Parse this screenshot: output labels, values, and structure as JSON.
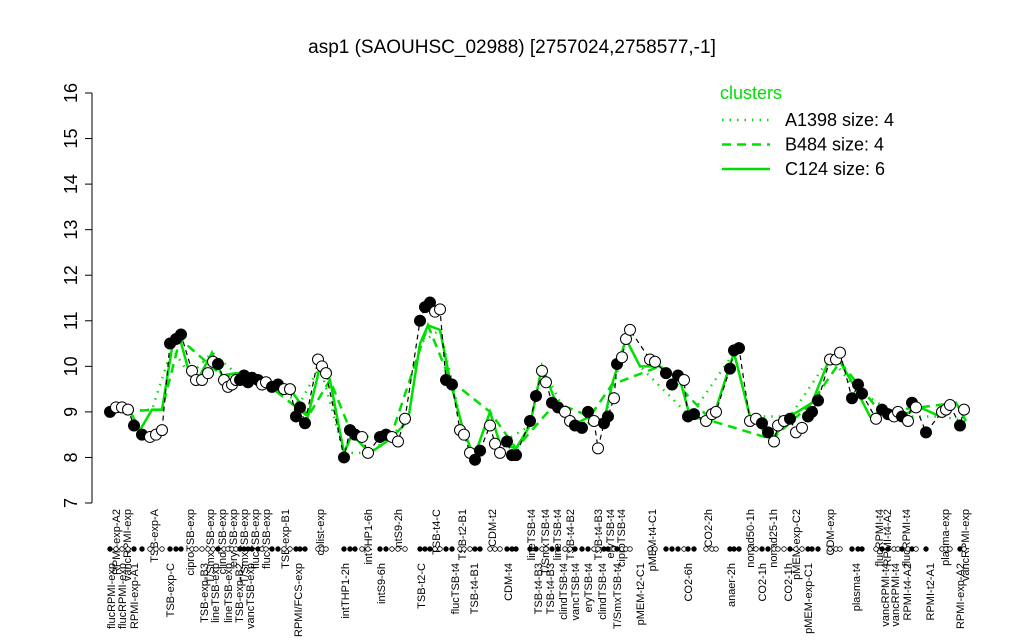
{
  "chart_data": {
    "type": "line",
    "title": "asp1 (SAOUHSC_02988) [2757024,2758577,-1]",
    "ylim": [
      7,
      16
    ],
    "yticks": [
      7,
      8,
      9,
      10,
      11,
      12,
      13,
      14,
      15,
      16
    ],
    "xlim": [
      0,
      880
    ],
    "xticks": [
      {
        "value": 16,
        "label": "flucRPMI-exp"
      },
      {
        "value": 27,
        "label": "flucRPMI-exp"
      },
      {
        "value": 39,
        "label": "RPMI-exp-A1"
      },
      {
        "value": 75,
        "label": "TSB-exp-C"
      },
      {
        "value": 109,
        "label": "TSB-exp-B3"
      },
      {
        "value": 120,
        "label": "lineTSB-exp"
      },
      {
        "value": 133,
        "label": "lineTSB-exp"
      },
      {
        "value": 144,
        "label": "TSB-exp-B2"
      },
      {
        "value": 155,
        "label": "vancTSB-exp"
      },
      {
        "value": 203,
        "label": "RPMI/FCS-exp"
      },
      {
        "value": 250,
        "label": "intTHP1-2h"
      },
      {
        "value": 286,
        "label": "intS9-6h"
      },
      {
        "value": 326,
        "label": "TSB-t2-C"
      },
      {
        "value": 360,
        "label": "flucTSB-t4"
      },
      {
        "value": 379,
        "label": "TSB-t4-B1"
      },
      {
        "value": 413,
        "label": "CDM-t4"
      },
      {
        "value": 443,
        "label": "TSB-t4-B3"
      },
      {
        "value": 455,
        "label": "TSB-t4-B3"
      },
      {
        "value": 468,
        "label": "clindTSB-t4"
      },
      {
        "value": 480,
        "label": "vancTSB-t4"
      },
      {
        "value": 493,
        "label": "eryTSB-t4"
      },
      {
        "value": 507,
        "label": "clindTSB-t4"
      },
      {
        "value": 522,
        "label": "T/SmxTSB-t4"
      },
      {
        "value": 545,
        "label": "pMEM-t2-C1"
      },
      {
        "value": 593,
        "label": "CO2-6h"
      },
      {
        "value": 636,
        "label": "anaer-2h"
      },
      {
        "value": 667,
        "label": "CO2-1h"
      },
      {
        "value": 693,
        "label": "CO2-1h"
      },
      {
        "value": 713,
        "label": "pMEM-exp-C1"
      },
      {
        "value": 761,
        "label": "plasma-t4"
      },
      {
        "value": 790,
        "label": "vancRPMI-t4"
      },
      {
        "value": 800,
        "label": "vancRPMI-t4"
      },
      {
        "value": 812,
        "label": "RPMI-t4-A2"
      },
      {
        "value": 835,
        "label": "RPMI-t2-A1"
      },
      {
        "value": 865,
        "label": "RPMI-exp-A2"
      }
    ],
    "xticks_top": [
      {
        "value": 21,
        "label": "RPMI-exp-A2"
      },
      {
        "value": 32,
        "label": "vancRPMI-exp"
      },
      {
        "value": 59,
        "label": "TSB-exp-A"
      },
      {
        "value": 95,
        "label": "ciproTSB-exp"
      },
      {
        "value": 115,
        "label": "T/SmxTSB-exp"
      },
      {
        "value": 127,
        "label": "clindTSB-exp"
      },
      {
        "value": 138,
        "label": "eryTSB-exp"
      },
      {
        "value": 149,
        "label": "T/SmxTSB-exp"
      },
      {
        "value": 160,
        "label": "flucTSB-exp"
      },
      {
        "value": 171,
        "label": "flucTSB-exp"
      },
      {
        "value": 190,
        "label": "TSB-exp-B1"
      },
      {
        "value": 225,
        "label": "colist-exp"
      },
      {
        "value": 273,
        "label": "intTHP1-6h"
      },
      {
        "value": 303,
        "label": "intS9-2h"
      },
      {
        "value": 341,
        "label": "TSB-t4-C"
      },
      {
        "value": 367,
        "label": "TSB-t2-B1"
      },
      {
        "value": 397,
        "label": "CDM-t2"
      },
      {
        "value": 436,
        "label": "lineTSB-t4"
      },
      {
        "value": 450,
        "label": "T/SmxTSB-t4"
      },
      {
        "value": 462,
        "label": "lineTSB-t4"
      },
      {
        "value": 475,
        "label": "TSB-t4-B2"
      },
      {
        "value": 503,
        "label": "TSB-t4-B3"
      },
      {
        "value": 515,
        "label": "eryTSB-t4"
      },
      {
        "value": 526,
        "label": "ciproTSB-t4"
      },
      {
        "value": 557,
        "label": "pMEM-t4-C1"
      },
      {
        "value": 613,
        "label": "CO2-2h"
      },
      {
        "value": 655,
        "label": "nonad50-1h"
      },
      {
        "value": 678,
        "label": "nonad25-1h"
      },
      {
        "value": 701,
        "label": "pMEM-exp-C2"
      },
      {
        "value": 735,
        "label": "CDM-exp"
      },
      {
        "value": 784,
        "label": "flucRPMI-t4"
      },
      {
        "value": 792,
        "label": "RPMI-t4-A2"
      },
      {
        "value": 811,
        "label": "flucRPMI-t4"
      },
      {
        "value": 850,
        "label": "plasma-exp"
      },
      {
        "value": 870,
        "label": "vancRPMI-exp"
      }
    ],
    "x": [
      15,
      21,
      27,
      33,
      39,
      47,
      55,
      61,
      67,
      75,
      81,
      86,
      97,
      101,
      107,
      113,
      118,
      123,
      129,
      133,
      137,
      141,
      145,
      149,
      153,
      157,
      163,
      167,
      171,
      177,
      183,
      189,
      195,
      201,
      205,
      210,
      223,
      227,
      231,
      249,
      255,
      260,
      267,
      273,
      285,
      291,
      297,
      303,
      310,
      325,
      330,
      335,
      340,
      345,
      351,
      357,
      365,
      369,
      375,
      380,
      385,
      395,
      400,
      405,
      412,
      417,
      421,
      435,
      441,
      447,
      451,
      457,
      463,
      470,
      475,
      480,
      487,
      493,
      499,
      503,
      509,
      513,
      519,
      522,
      527,
      531,
      535,
      555,
      560,
      571,
      577,
      583,
      589,
      593,
      599,
      611,
      617,
      621,
      635,
      639,
      644,
      655,
      661,
      667,
      673,
      679,
      683,
      689,
      695,
      701,
      707,
      713,
      717,
      723,
      735,
      741,
      745,
      757,
      763,
      767,
      781,
      787,
      793,
      799,
      803,
      807,
      813,
      817,
      821,
      831,
      847,
      851,
      855,
      865,
      869
    ],
    "values": [
      9.0,
      9.1,
      9.1,
      9.05,
      8.7,
      8.5,
      8.45,
      8.5,
      8.6,
      10.5,
      10.6,
      10.7,
      9.9,
      9.7,
      9.7,
      9.85,
      10.1,
      10.05,
      9.7,
      9.55,
      9.6,
      9.7,
      9.7,
      9.8,
      9.65,
      9.75,
      9.7,
      9.6,
      9.65,
      9.55,
      9.6,
      9.5,
      9.5,
      8.9,
      9.1,
      8.75,
      10.15,
      10.0,
      9.85,
      8.0,
      8.6,
      8.5,
      8.45,
      8.1,
      8.45,
      8.5,
      8.45,
      8.35,
      8.85,
      11.0,
      11.3,
      11.4,
      11.2,
      11.25,
      9.7,
      9.6,
      8.6,
      8.5,
      8.1,
      7.95,
      8.15,
      8.7,
      8.3,
      8.1,
      8.35,
      8.05,
      8.05,
      8.8,
      9.35,
      9.9,
      9.65,
      9.2,
      9.1,
      9.0,
      8.8,
      8.7,
      8.65,
      9.0,
      8.8,
      8.2,
      8.75,
      8.9,
      9.3,
      10.05,
      10.2,
      10.6,
      10.8,
      10.15,
      10.1,
      9.85,
      9.6,
      9.8,
      9.7,
      8.9,
      8.95,
      8.8,
      8.95,
      9.0,
      9.95,
      10.35,
      10.4,
      8.8,
      8.85,
      8.75,
      8.55,
      8.35,
      8.7,
      8.8,
      8.85,
      8.55,
      8.65,
      8.9,
      9.0,
      9.25,
      10.15,
      10.15,
      10.3,
      9.3,
      9.6,
      9.4,
      8.85,
      9.05,
      8.95,
      8.9,
      9.0,
      8.9,
      8.8,
      9.2,
      9.1,
      8.55,
      9.0,
      9.05,
      9.15,
      8.7,
      9.05
    ],
    "filled": [
      true,
      false,
      false,
      false,
      true,
      true,
      false,
      false,
      false,
      true,
      true,
      true,
      false,
      false,
      false,
      false,
      false,
      true,
      false,
      false,
      false,
      false,
      true,
      true,
      true,
      true,
      true,
      false,
      false,
      true,
      true,
      false,
      false,
      true,
      true,
      true,
      false,
      false,
      false,
      true,
      true,
      true,
      false,
      false,
      true,
      true,
      false,
      false,
      false,
      true,
      true,
      true,
      false,
      false,
      true,
      true,
      false,
      false,
      false,
      true,
      true,
      false,
      false,
      false,
      true,
      true,
      true,
      true,
      true,
      false,
      false,
      true,
      true,
      false,
      false,
      true,
      true,
      true,
      false,
      false,
      true,
      true,
      false,
      true,
      false,
      false,
      false,
      false,
      false,
      true,
      true,
      true,
      false,
      true,
      true,
      false,
      false,
      false,
      true,
      true,
      true,
      false,
      false,
      true,
      true,
      false,
      false,
      false,
      true,
      false,
      false,
      true,
      true,
      true,
      false,
      false,
      false,
      true,
      true,
      true,
      false,
      true,
      true,
      false,
      false,
      true,
      false,
      true,
      false,
      true,
      false,
      false,
      false,
      true,
      false
    ],
    "color": "#000000",
    "legend_title": "clusters",
    "series": [
      {
        "name": "A1398 size: 4",
        "color": "#00e000",
        "linestyle": "dotted",
        "x": [
          15,
          57,
          77,
          95,
          117,
          141,
          175,
          205,
          225,
          249,
          275,
          313,
          325,
          345,
          367,
          379,
          405,
          435,
          447,
          477,
          509,
          531,
          545,
          595,
          639,
          655,
          695,
          735,
          761,
          805,
          845,
          871
        ],
        "values": [
          9.0,
          9.05,
          10.4,
          9.8,
          10.3,
          9.85,
          9.6,
          9.2,
          10.0,
          8.1,
          8.1,
          8.8,
          10.5,
          10.8,
          8.7,
          8.0,
          8.3,
          8.7,
          10.0,
          8.7,
          8.8,
          10.6,
          10.0,
          8.9,
          10.3,
          8.9,
          8.9,
          10.2,
          9.5,
          8.9,
          8.9,
          8.8
        ]
      },
      {
        "name": "B484 size: 4",
        "color": "#00e000",
        "linestyle": "dashed",
        "x": [
          15,
          67,
          85,
          127,
          161,
          213,
          235,
          257,
          295,
          333,
          355,
          395,
          421,
          461,
          495,
          517,
          565,
          617,
          677,
          717,
          745,
          785,
          825,
          861
        ],
        "values": [
          9.0,
          9.05,
          10.6,
          9.8,
          9.8,
          8.9,
          9.7,
          8.5,
          8.4,
          10.9,
          9.7,
          9.0,
          8.2,
          9.2,
          8.9,
          9.6,
          10.0,
          8.8,
          8.4,
          9.2,
          10.1,
          9.0,
          9.1,
          9.2
        ]
      },
      {
        "name": "C124 size: 6",
        "color": "#00e000",
        "linestyle": "solid",
        "x": [
          15,
          33,
          45,
          57,
          67,
          77,
          85,
          95,
          105,
          117,
          127,
          141,
          161,
          175,
          195,
          205,
          213,
          225,
          235,
          249,
          257,
          275,
          295,
          313,
          325,
          333,
          345,
          355,
          367,
          379,
          395,
          405,
          421,
          435,
          447,
          461,
          477,
          495,
          509,
          517,
          531,
          545,
          565,
          585,
          595,
          617,
          639,
          655,
          677,
          695,
          717,
          735,
          745,
          761,
          775,
          785,
          805,
          825,
          845,
          861,
          871
        ],
        "values": [
          9.0,
          9.1,
          8.6,
          9.05,
          9.05,
          10.4,
          10.6,
          9.8,
          9.8,
          10.3,
          9.8,
          9.85,
          9.8,
          9.6,
          9.5,
          9.2,
          8.9,
          10.0,
          9.7,
          8.1,
          8.5,
          8.1,
          8.4,
          8.8,
          10.5,
          10.9,
          10.8,
          9.7,
          8.7,
          8.0,
          9.0,
          8.3,
          8.2,
          8.7,
          10.0,
          9.2,
          8.7,
          8.9,
          8.8,
          9.6,
          10.6,
          10.0,
          10.0,
          9.7,
          8.9,
          8.8,
          10.3,
          8.9,
          8.4,
          8.9,
          9.2,
          10.2,
          10.1,
          9.5,
          8.9,
          9.0,
          8.9,
          9.1,
          8.9,
          9.2,
          8.8
        ]
      }
    ]
  }
}
